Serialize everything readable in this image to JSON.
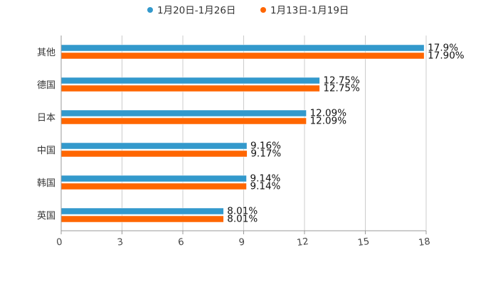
{
  "chart_data": {
    "type": "bar",
    "orientation": "horizontal",
    "categories": [
      "其他",
      "德国",
      "日本",
      "中国",
      "韩国",
      "英国"
    ],
    "series": [
      {
        "name": "1月20日-1月26日",
        "color": "#3399cc",
        "values": [
          17.9,
          12.75,
          12.09,
          9.16,
          9.14,
          8.01
        ],
        "labels": [
          "17.9%",
          "12.75%",
          "12.09%",
          "9.16%",
          "9.14%",
          "8.01%"
        ]
      },
      {
        "name": "1月13日-1月19日",
        "color": "#ff6600",
        "values": [
          17.9,
          12.75,
          12.09,
          9.17,
          9.14,
          8.01
        ],
        "labels": [
          "17.90%",
          "12.75%",
          "12.09%",
          "9.17%",
          "9.14%",
          "8.01%"
        ]
      }
    ],
    "xlim": [
      0,
      18
    ],
    "xticks": [
      0,
      3,
      6,
      9,
      12,
      15,
      18
    ],
    "xtick_labels": [
      "0",
      "3",
      "6",
      "9",
      "12",
      "15",
      "18"
    ],
    "grid": true,
    "legend_position": "top-center"
  }
}
